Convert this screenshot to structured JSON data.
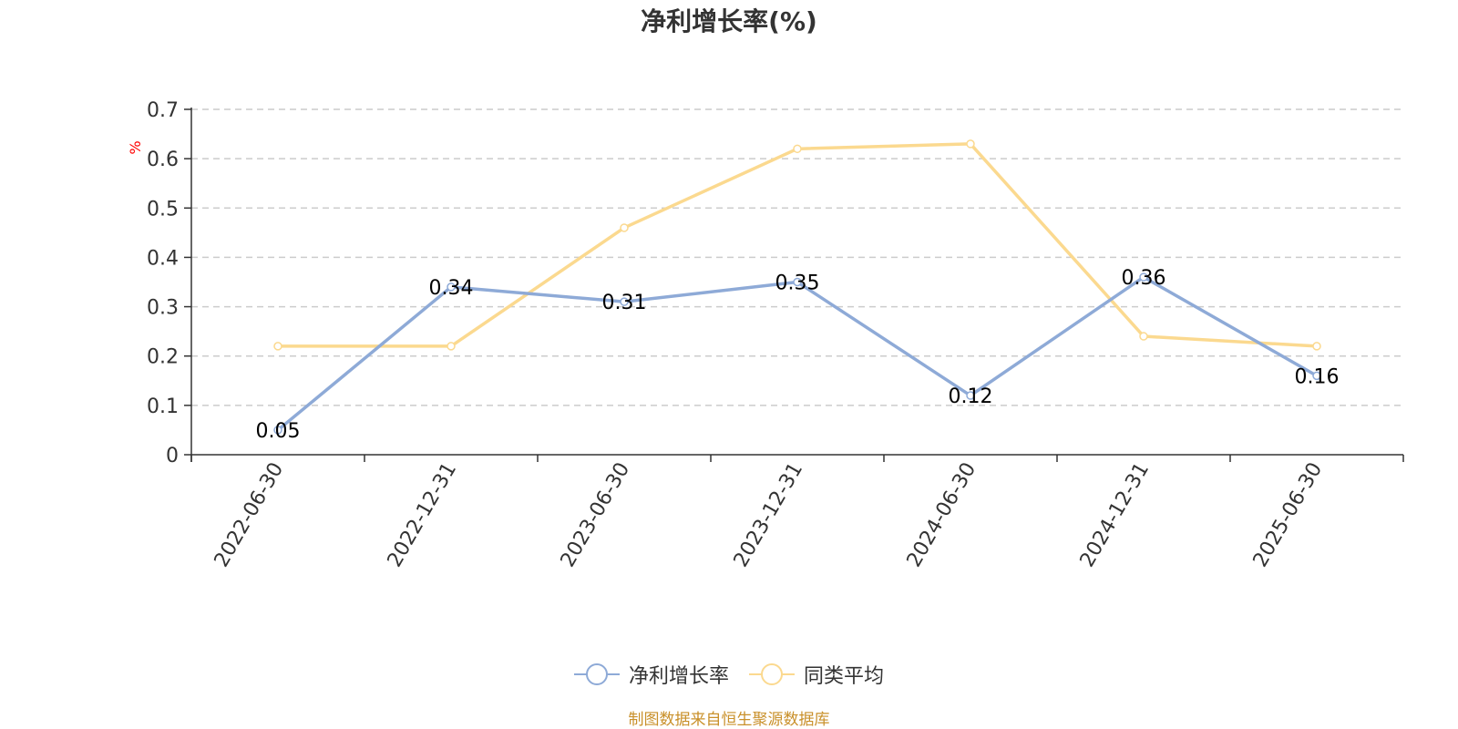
{
  "chart_data": {
    "type": "line",
    "title": "净利增长率(%)",
    "unit": "%",
    "categories": [
      "2022-06-30",
      "2022-12-31",
      "2023-06-30",
      "2023-12-31",
      "2024-06-30",
      "2024-12-31",
      "2025-06-30"
    ],
    "ylim": [
      0,
      0.7
    ],
    "yticks": [
      "0",
      "0.1",
      "0.2",
      "0.3",
      "0.4",
      "0.5",
      "0.6",
      "0.7"
    ],
    "grid": true,
    "legend_position": "bottom",
    "series": [
      {
        "name": "净利增长率",
        "color": "#8eaad7",
        "values": [
          0.05,
          0.34,
          0.31,
          0.35,
          0.12,
          0.36,
          0.16
        ],
        "labels": [
          "0.05",
          "0.34",
          "0.31",
          "0.35",
          "0.12",
          "0.36",
          "0.16"
        ]
      },
      {
        "name": "同类平均",
        "color": "#fbd98f",
        "values": [
          0.22,
          0.22,
          0.46,
          0.62,
          0.63,
          0.24,
          0.22
        ]
      }
    ]
  },
  "source": "制图数据来自恒生聚源数据库"
}
